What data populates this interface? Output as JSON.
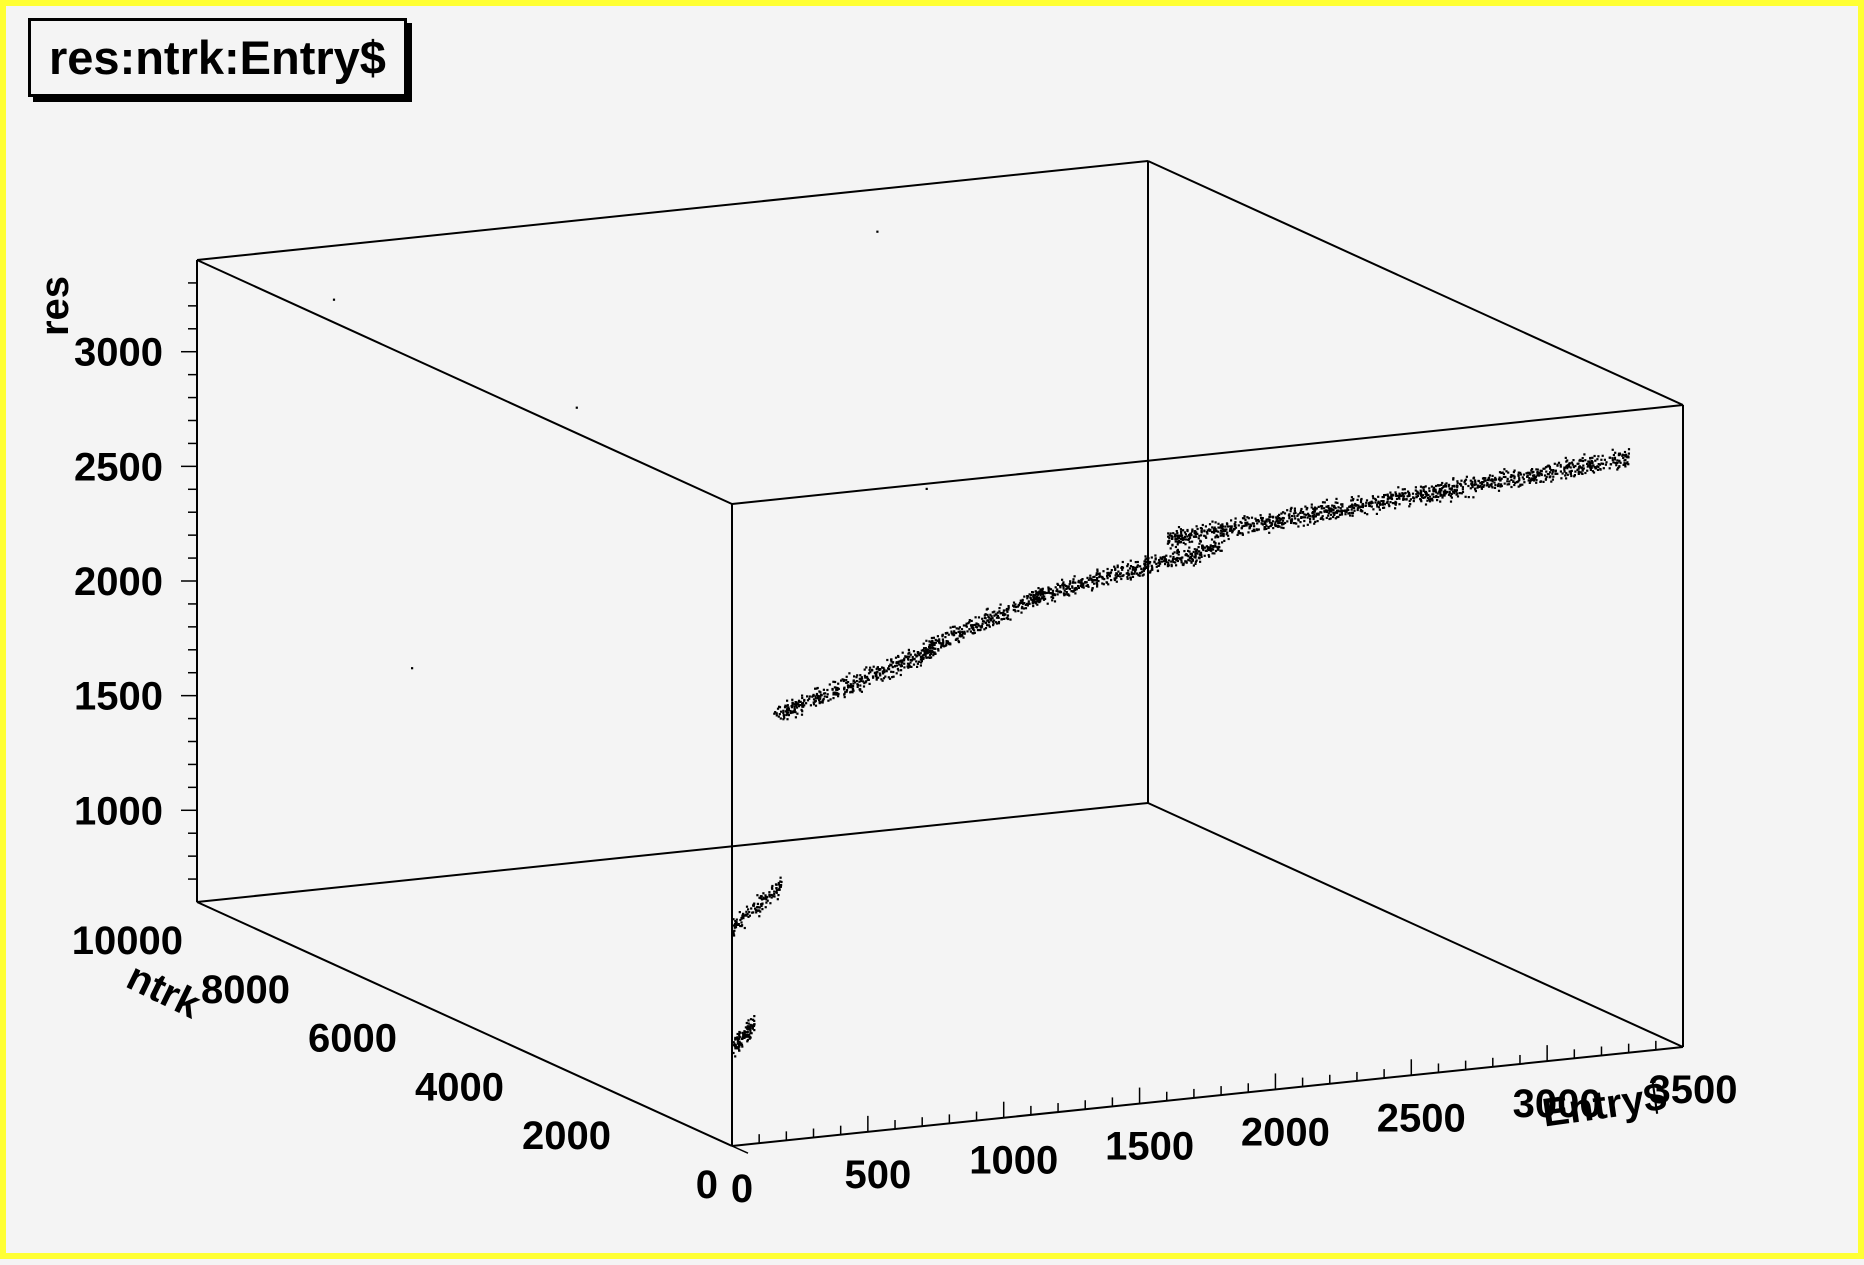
{
  "title": "res:ntrk:Entry$",
  "chart_data": {
    "type": "scatter",
    "projection": "3d",
    "title": "res:ntrk:Entry$",
    "x_axis": {
      "label": "Entry$",
      "range": [
        0,
        3500
      ],
      "ticks": [
        "0",
        "500",
        "1000",
        "1500",
        "2000",
        "2500",
        "3000",
        "3500"
      ]
    },
    "y_axis": {
      "label": "ntrk",
      "range": [
        0,
        10000
      ],
      "ticks": [
        "0",
        "2000",
        "4000",
        "6000",
        "8000",
        "10000"
      ]
    },
    "z_axis": {
      "label": "res",
      "range": [
        600,
        3400
      ],
      "ticks": [
        "1000",
        "1500",
        "2000",
        "2500",
        "3000"
      ]
    },
    "grid": false,
    "clusters": [
      {
        "entry_range": [
          0,
          80
        ],
        "ntrk": 0,
        "res": [
          1030,
          1130
        ]
      },
      {
        "entry_range": [
          0,
          180
        ],
        "ntrk": 0,
        "res": [
          1560,
          1720
        ]
      },
      {
        "entry_range": [
          150,
          750
        ],
        "ntrk": 0,
        "res": [
          2460,
          2680
        ]
      },
      {
        "entry_range": [
          700,
          1150
        ],
        "ntrk": 0,
        "res": [
          2680,
          2870
        ]
      },
      {
        "entry_range": [
          1100,
          1800
        ],
        "ntrk": 0,
        "res": [
          2860,
          3000
        ]
      },
      {
        "entry_range": [
          1600,
          3300
        ],
        "ntrk": 0,
        "res": [
          3050,
          3200
        ]
      }
    ],
    "outliers": [
      {
        "entry": 500,
        "ntrk": 10000,
        "res": 3170
      },
      {
        "entry": 2500,
        "ntrk": 10000,
        "res": 3220
      },
      {
        "entry": 1000,
        "ntrk": 8000,
        "res": 2850
      },
      {
        "entry": 0,
        "ntrk": 6000,
        "res": 2050
      },
      {
        "entry": 1500,
        "ntrk": 4000,
        "res": 2860
      }
    ]
  }
}
